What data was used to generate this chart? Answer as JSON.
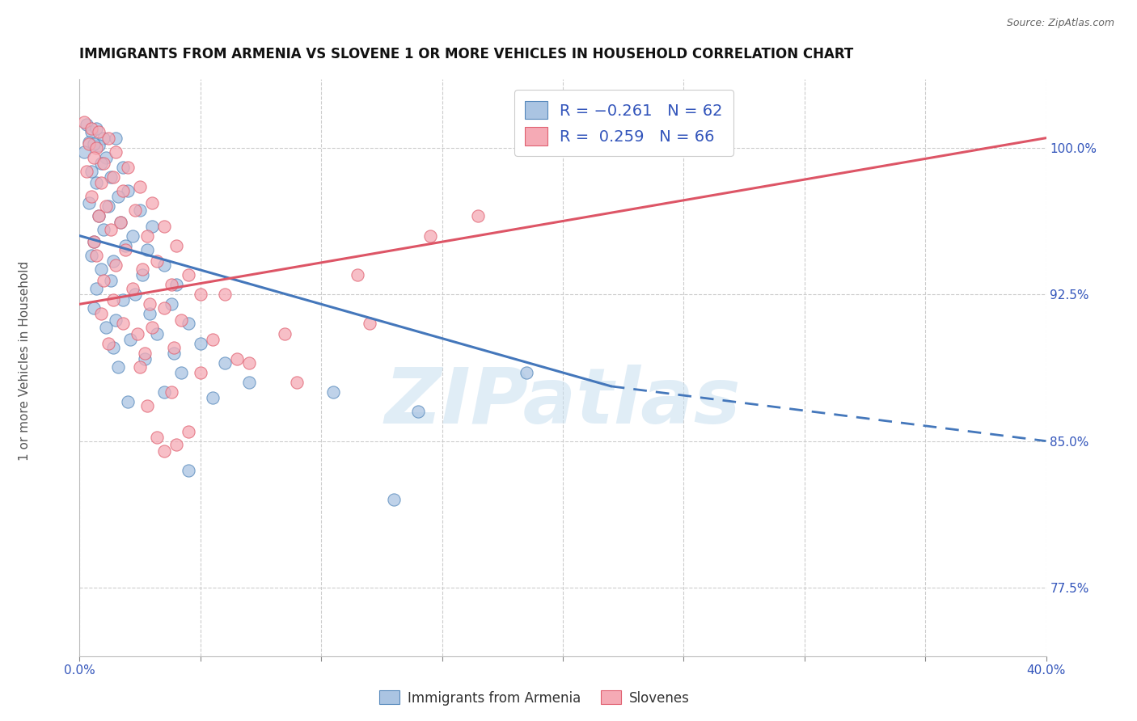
{
  "title": "IMMIGRANTS FROM ARMENIA VS SLOVENE 1 OR MORE VEHICLES IN HOUSEHOLD CORRELATION CHART",
  "source": "Source: ZipAtlas.com",
  "ylabel": "1 or more Vehicles in Household",
  "yticks": [
    77.5,
    85.0,
    92.5,
    100.0
  ],
  "ytick_labels": [
    "77.5%",
    "85.0%",
    "92.5%",
    "100.0%"
  ],
  "xtick_positions": [
    0,
    5,
    10,
    15,
    20,
    25,
    30,
    35,
    40
  ],
  "xtick_labels": [
    "0.0%",
    "",
    "",
    "",
    "",
    "",
    "",
    "",
    "40.0%"
  ],
  "xmin": 0.0,
  "xmax": 40.0,
  "ymin": 74.0,
  "ymax": 103.5,
  "legend_labels": [
    "Immigrants from Armenia",
    "Slovenes"
  ],
  "blue_color": "#aac4e2",
  "pink_color": "#f5aab5",
  "blue_edge_color": "#5588bb",
  "pink_edge_color": "#e06070",
  "blue_line_color": "#4477bb",
  "pink_line_color": "#dd5566",
  "watermark_color": "#c8dff0",
  "watermark_text": "ZIPatlas",
  "blue_scatter": [
    [
      0.3,
      101.2
    ],
    [
      0.5,
      100.8
    ],
    [
      0.7,
      101.0
    ],
    [
      1.0,
      100.5
    ],
    [
      0.4,
      100.3
    ],
    [
      0.8,
      100.1
    ],
    [
      1.5,
      100.5
    ],
    [
      0.6,
      100.2
    ],
    [
      0.2,
      99.8
    ],
    [
      1.1,
      99.5
    ],
    [
      0.9,
      99.2
    ],
    [
      1.8,
      99.0
    ],
    [
      0.5,
      98.8
    ],
    [
      1.3,
      98.5
    ],
    [
      0.7,
      98.2
    ],
    [
      2.0,
      97.8
    ],
    [
      1.6,
      97.5
    ],
    [
      0.4,
      97.2
    ],
    [
      1.2,
      97.0
    ],
    [
      2.5,
      96.8
    ],
    [
      0.8,
      96.5
    ],
    [
      1.7,
      96.2
    ],
    [
      3.0,
      96.0
    ],
    [
      1.0,
      95.8
    ],
    [
      2.2,
      95.5
    ],
    [
      0.6,
      95.2
    ],
    [
      1.9,
      95.0
    ],
    [
      2.8,
      94.8
    ],
    [
      0.5,
      94.5
    ],
    [
      1.4,
      94.2
    ],
    [
      3.5,
      94.0
    ],
    [
      0.9,
      93.8
    ],
    [
      2.6,
      93.5
    ],
    [
      1.3,
      93.2
    ],
    [
      4.0,
      93.0
    ],
    [
      0.7,
      92.8
    ],
    [
      2.3,
      92.5
    ],
    [
      1.8,
      92.2
    ],
    [
      3.8,
      92.0
    ],
    [
      0.6,
      91.8
    ],
    [
      2.9,
      91.5
    ],
    [
      1.5,
      91.2
    ],
    [
      4.5,
      91.0
    ],
    [
      1.1,
      90.8
    ],
    [
      3.2,
      90.5
    ],
    [
      2.1,
      90.2
    ],
    [
      5.0,
      90.0
    ],
    [
      1.4,
      89.8
    ],
    [
      3.9,
      89.5
    ],
    [
      2.7,
      89.2
    ],
    [
      6.0,
      89.0
    ],
    [
      1.6,
      88.8
    ],
    [
      4.2,
      88.5
    ],
    [
      7.0,
      88.0
    ],
    [
      3.5,
      87.5
    ],
    [
      2.0,
      87.0
    ],
    [
      5.5,
      87.2
    ],
    [
      10.5,
      87.5
    ],
    [
      14.0,
      86.5
    ],
    [
      18.5,
      88.5
    ],
    [
      4.5,
      83.5
    ],
    [
      13.0,
      82.0
    ]
  ],
  "pink_scatter": [
    [
      0.2,
      101.3
    ],
    [
      0.5,
      101.0
    ],
    [
      0.8,
      100.8
    ],
    [
      1.2,
      100.5
    ],
    [
      0.4,
      100.2
    ],
    [
      0.7,
      100.0
    ],
    [
      1.5,
      99.8
    ],
    [
      0.6,
      99.5
    ],
    [
      1.0,
      99.2
    ],
    [
      2.0,
      99.0
    ],
    [
      0.3,
      98.8
    ],
    [
      1.4,
      98.5
    ],
    [
      0.9,
      98.2
    ],
    [
      2.5,
      98.0
    ],
    [
      1.8,
      97.8
    ],
    [
      0.5,
      97.5
    ],
    [
      3.0,
      97.2
    ],
    [
      1.1,
      97.0
    ],
    [
      2.3,
      96.8
    ],
    [
      0.8,
      96.5
    ],
    [
      1.7,
      96.2
    ],
    [
      3.5,
      96.0
    ],
    [
      1.3,
      95.8
    ],
    [
      2.8,
      95.5
    ],
    [
      0.6,
      95.2
    ],
    [
      4.0,
      95.0
    ],
    [
      1.9,
      94.8
    ],
    [
      0.7,
      94.5
    ],
    [
      3.2,
      94.2
    ],
    [
      1.5,
      94.0
    ],
    [
      2.6,
      93.8
    ],
    [
      4.5,
      93.5
    ],
    [
      1.0,
      93.2
    ],
    [
      3.8,
      93.0
    ],
    [
      2.2,
      92.8
    ],
    [
      5.0,
      92.5
    ],
    [
      1.4,
      92.2
    ],
    [
      2.9,
      92.0
    ],
    [
      3.5,
      91.8
    ],
    [
      0.9,
      91.5
    ],
    [
      4.2,
      91.2
    ],
    [
      1.8,
      91.0
    ],
    [
      3.0,
      90.8
    ],
    [
      2.4,
      90.5
    ],
    [
      5.5,
      90.2
    ],
    [
      1.2,
      90.0
    ],
    [
      3.9,
      89.8
    ],
    [
      2.7,
      89.5
    ],
    [
      6.5,
      89.2
    ],
    [
      2.5,
      88.8
    ],
    [
      5.0,
      88.5
    ],
    [
      7.0,
      89.0
    ],
    [
      3.8,
      87.5
    ],
    [
      2.8,
      86.8
    ],
    [
      4.5,
      85.5
    ],
    [
      3.2,
      85.2
    ],
    [
      9.0,
      88.0
    ],
    [
      12.0,
      91.0
    ],
    [
      22.0,
      100.0
    ],
    [
      16.5,
      96.5
    ],
    [
      14.5,
      95.5
    ],
    [
      11.5,
      93.5
    ],
    [
      6.0,
      92.5
    ],
    [
      8.5,
      90.5
    ],
    [
      4.0,
      84.8
    ],
    [
      3.5,
      84.5
    ]
  ],
  "blue_trend_x": [
    0.0,
    22.0,
    40.0
  ],
  "blue_trend_y": [
    95.5,
    87.8,
    85.0
  ],
  "blue_solid_end_x": 22.0,
  "pink_trend_x": [
    0.0,
    40.0
  ],
  "pink_trend_y": [
    92.0,
    100.5
  ]
}
